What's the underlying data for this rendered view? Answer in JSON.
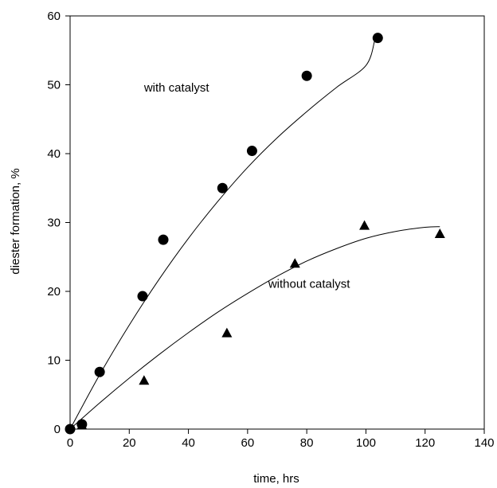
{
  "chart_data": {
    "type": "scatter",
    "title": "",
    "xlabel": "time, hrs",
    "ylabel": "diester formation, %",
    "xlim": [
      0,
      140
    ],
    "ylim": [
      0,
      60
    ],
    "xticks": [
      0,
      20,
      40,
      60,
      80,
      100,
      120,
      140
    ],
    "yticks": [
      0,
      10,
      20,
      30,
      40,
      50,
      60
    ],
    "grid": false,
    "legend": "none",
    "series": [
      {
        "name": "with catalyst",
        "marker": "circle",
        "points": [
          [
            0,
            0
          ],
          [
            4,
            0.7
          ],
          [
            10,
            8.3
          ],
          [
            24.5,
            19.3
          ],
          [
            31.5,
            27.5
          ],
          [
            51.5,
            35
          ],
          [
            61.5,
            40.4
          ],
          [
            80,
            51.3
          ],
          [
            104,
            56.8
          ]
        ],
        "fit": [
          [
            0,
            0
          ],
          [
            10,
            7.9
          ],
          [
            20,
            15.1
          ],
          [
            30,
            21.7
          ],
          [
            40,
            27.7
          ],
          [
            50,
            33.1
          ],
          [
            60,
            38
          ],
          [
            70,
            42.3
          ],
          [
            80,
            46.1
          ],
          [
            90,
            49.6
          ],
          [
            100,
            52.8
          ],
          [
            103,
            56.5
          ]
        ]
      },
      {
        "name": "without catalyst",
        "marker": "triangle",
        "points": [
          [
            4,
            0.5
          ],
          [
            25,
            7
          ],
          [
            53,
            13.9
          ],
          [
            76,
            24
          ],
          [
            99.5,
            29.5
          ],
          [
            125,
            28.3
          ]
        ],
        "fit": [
          [
            0,
            0
          ],
          [
            10,
            3.8
          ],
          [
            20,
            7.4
          ],
          [
            30,
            10.8
          ],
          [
            40,
            14
          ],
          [
            50,
            17
          ],
          [
            60,
            19.7
          ],
          [
            70,
            22.2
          ],
          [
            80,
            24.4
          ],
          [
            90,
            26.2
          ],
          [
            100,
            27.7
          ],
          [
            110,
            28.7
          ],
          [
            120,
            29.3
          ],
          [
            125,
            29.4
          ]
        ]
      }
    ],
    "annotations": [
      {
        "text": "with catalyst",
        "x": 25,
        "y": 49
      },
      {
        "text": "without catalyst",
        "x": 67,
        "y": 20.5
      }
    ],
    "colors": {
      "ink": "#000000",
      "background": "#ffffff"
    }
  }
}
